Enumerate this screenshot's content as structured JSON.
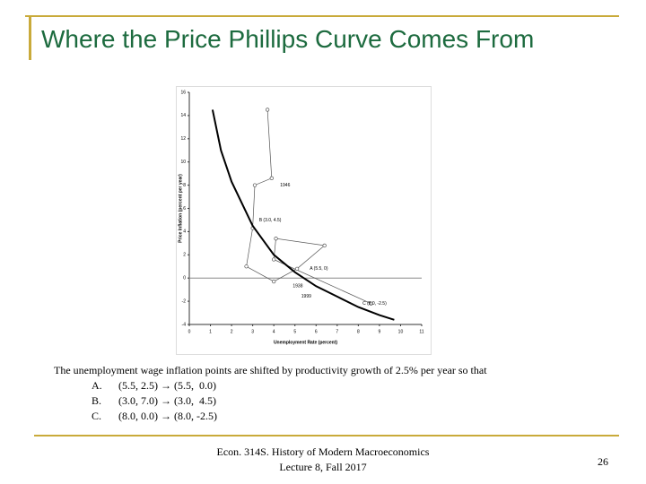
{
  "title": "Where the Price Phillips Curve Comes From",
  "chart_data": {
    "type": "scatter",
    "xlabel": "Unemployment Rate (percent)",
    "ylabel": "Price Inflation (percent per year)",
    "xlim": [
      0,
      11
    ],
    "ylim": [
      -4,
      16
    ],
    "xticks": [
      0,
      1,
      2,
      3,
      4,
      5,
      6,
      7,
      8,
      9,
      10,
      11
    ],
    "yticks": [
      -4,
      -2,
      0,
      2,
      4,
      6,
      8,
      10,
      12,
      14,
      16
    ],
    "hline": 0,
    "series": [
      {
        "color": "#555555",
        "x": [
          3.7,
          3.9,
          3.1,
          3.0,
          2.7,
          4.0,
          5.1,
          6.4,
          4.1,
          4.0,
          8.6
        ],
        "values": [
          14.5,
          8.6,
          8.0,
          4.3,
          1.0,
          -0.3,
          0.8,
          2.8,
          3.4,
          1.6,
          -2.2
        ]
      },
      {
        "color": "#000000",
        "x": [
          1.1,
          1.5,
          2,
          3,
          4,
          5,
          6,
          7,
          8,
          9,
          9.7
        ],
        "values": [
          14.5,
          11,
          8.3,
          4.5,
          2,
          0.5,
          -0.7,
          -1.6,
          -2.5,
          -3.2,
          -3.6
        ]
      }
    ],
    "annotations": [
      "1946",
      "B (3.0, 4.5)",
      "A (5.5, 0)",
      "1938",
      "1999",
      "C (8.0, -2.5)"
    ]
  },
  "body": {
    "intro": "The unemployment wage inflation points are shifted by productivity growth of 2.5% per year so that",
    "items": [
      {
        "letter": "A.",
        "text": "(5.5, 2.5) → (5.5,  0.0)"
      },
      {
        "letter": "B.",
        "text": "(3.0, 7.0) → (3.0,  4.5)"
      },
      {
        "letter": "C.",
        "text": "(8.0, 0.0) → (8.0, -2.5)"
      }
    ]
  },
  "footer": {
    "lines": [
      "Econ. 314S. History of Modern Macroeconomics",
      "Lecture 8, Fall 2017"
    ],
    "page": "26"
  }
}
